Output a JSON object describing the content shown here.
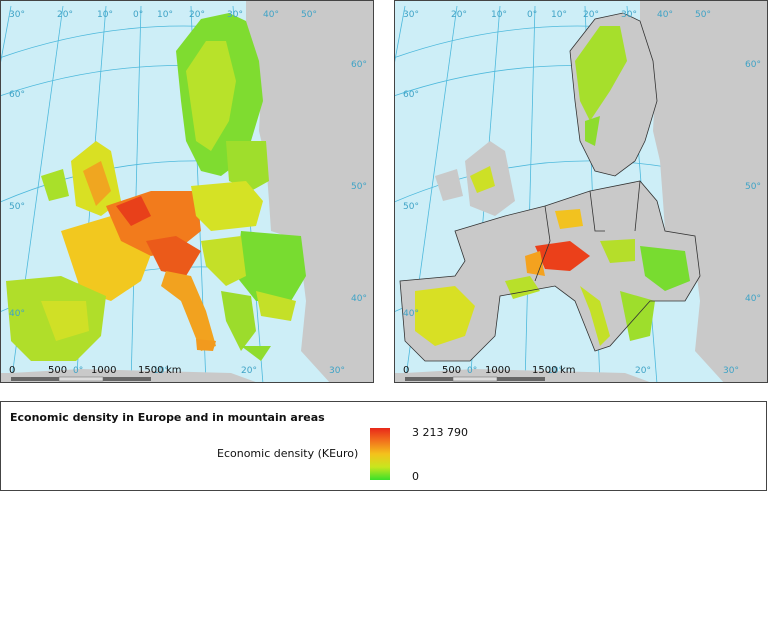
{
  "maps": [
    {
      "id": "europe",
      "coords_top": [
        "30°",
        "20°",
        "10°",
        "0°",
        "10°",
        "20°",
        "30°",
        "40°",
        "50°"
      ],
      "coords_right": [
        "60°",
        "50°",
        "40°"
      ],
      "coords_left": [
        "60°",
        "50°",
        "40°"
      ],
      "coords_bottom": [
        "0°",
        "10°",
        "20°",
        "30°"
      ],
      "scale_labels": [
        "0",
        "500",
        "1000",
        "1500",
        "km"
      ]
    },
    {
      "id": "mountains",
      "coords_top": [
        "30°",
        "20°",
        "10°",
        "0°",
        "10°",
        "20°",
        "30°",
        "40°",
        "50°"
      ],
      "coords_right": [
        "60°",
        "50°",
        "40°"
      ],
      "coords_left": [
        "60°",
        "50°",
        "40°"
      ],
      "coords_bottom": [
        "0°",
        "10°",
        "20°",
        "30°"
      ],
      "scale_labels": [
        "0",
        "500",
        "1000",
        "1500",
        "km"
      ]
    }
  ],
  "legend": {
    "title": "Economic density in Europe and in mountain areas",
    "label": "Economic density (KEuro)",
    "max": "3 213 790",
    "min": "0",
    "colors": [
      "#e8281a",
      "#f2731c",
      "#f4c21c",
      "#c8e61e",
      "#38e02a"
    ]
  }
}
